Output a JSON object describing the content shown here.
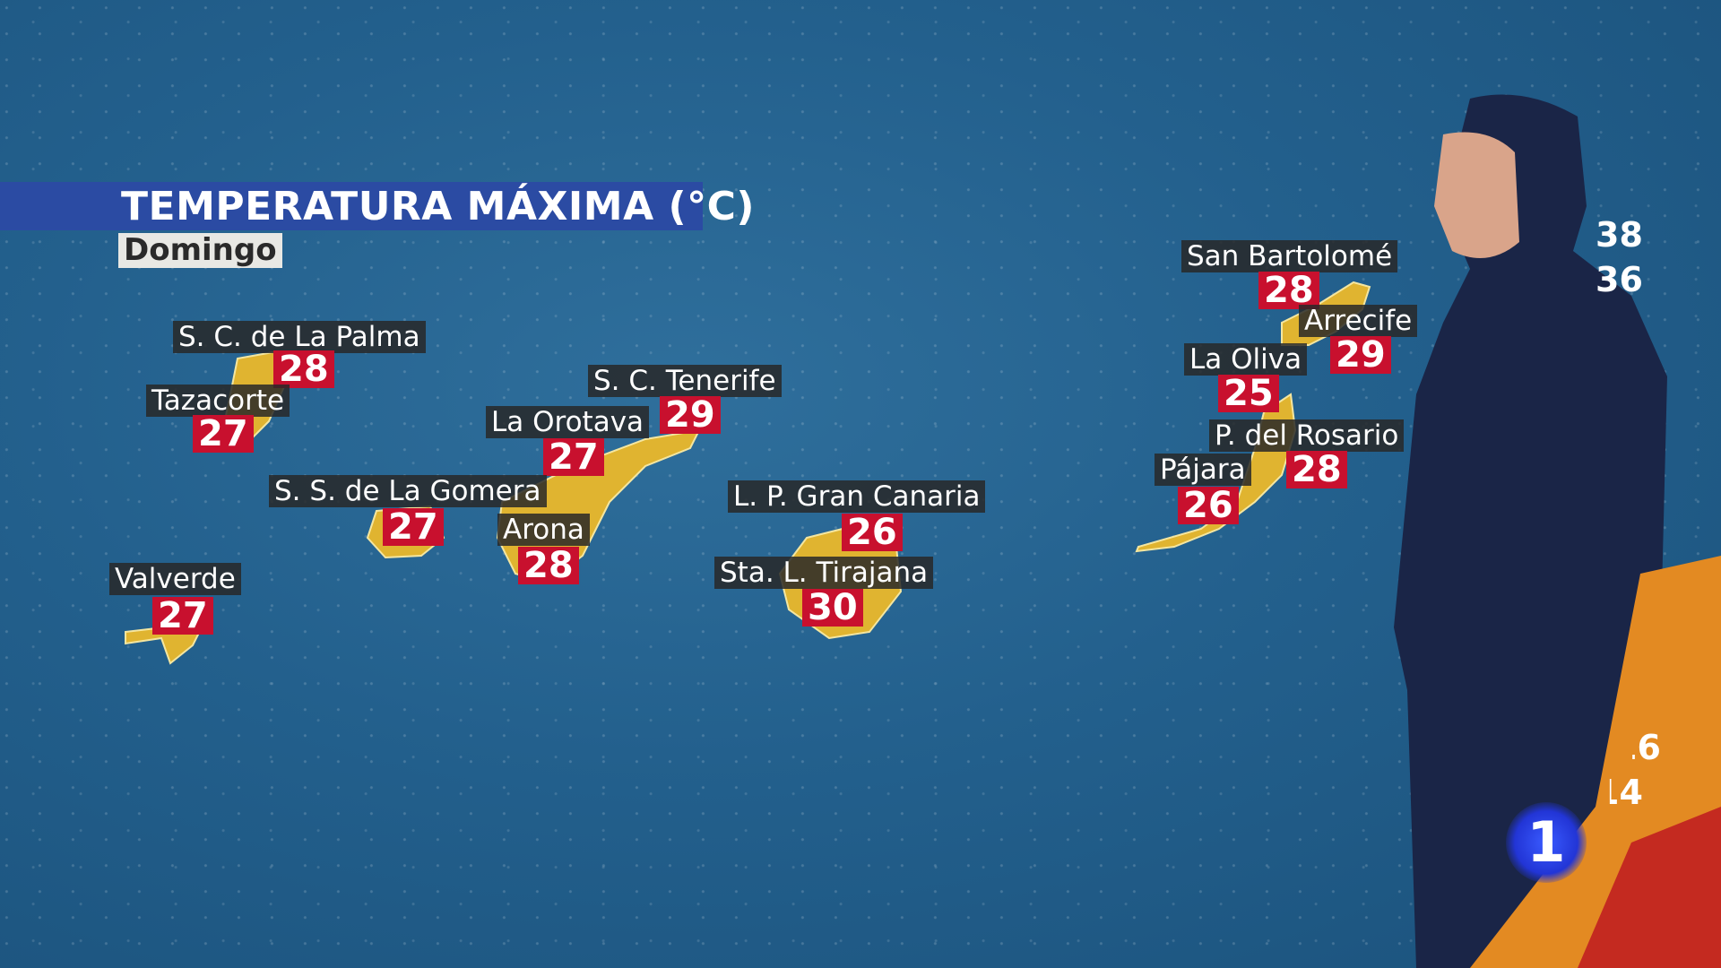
{
  "header": {
    "title": "TEMPERATURA MÁXIMA (°C)",
    "day": "Domingo"
  },
  "colors": {
    "title_bar": "#2b4ba3",
    "temp_badge": "#c8102e",
    "label_bg": "#282828",
    "island": "#e0b430"
  },
  "locations": [
    {
      "name": "S. C. de La Palma",
      "temp": "28"
    },
    {
      "name": "Tazacorte",
      "temp": "27"
    },
    {
      "name": "S. C. Tenerife",
      "temp": "29"
    },
    {
      "name": "La Orotava",
      "temp": "27"
    },
    {
      "name": "S. S. de La Gomera",
      "temp": "27"
    },
    {
      "name": "Arona",
      "temp": "28"
    },
    {
      "name": "Valverde",
      "temp": "27"
    },
    {
      "name": "L. P. Gran Canaria",
      "temp": "26"
    },
    {
      "name": "Sta. L. Tirajana",
      "temp": "30"
    },
    {
      "name": "San Bartolomé",
      "temp": "28"
    },
    {
      "name": "Arrecife",
      "temp": "29"
    },
    {
      "name": "La Oliva",
      "temp": "25"
    },
    {
      "name": "P. del Rosario",
      "temp": "28"
    },
    {
      "name": "Pájara",
      "temp": "26"
    }
  ],
  "side_legend": [
    "38",
    "36",
    "16",
    "14"
  ],
  "channel_logo": "1"
}
